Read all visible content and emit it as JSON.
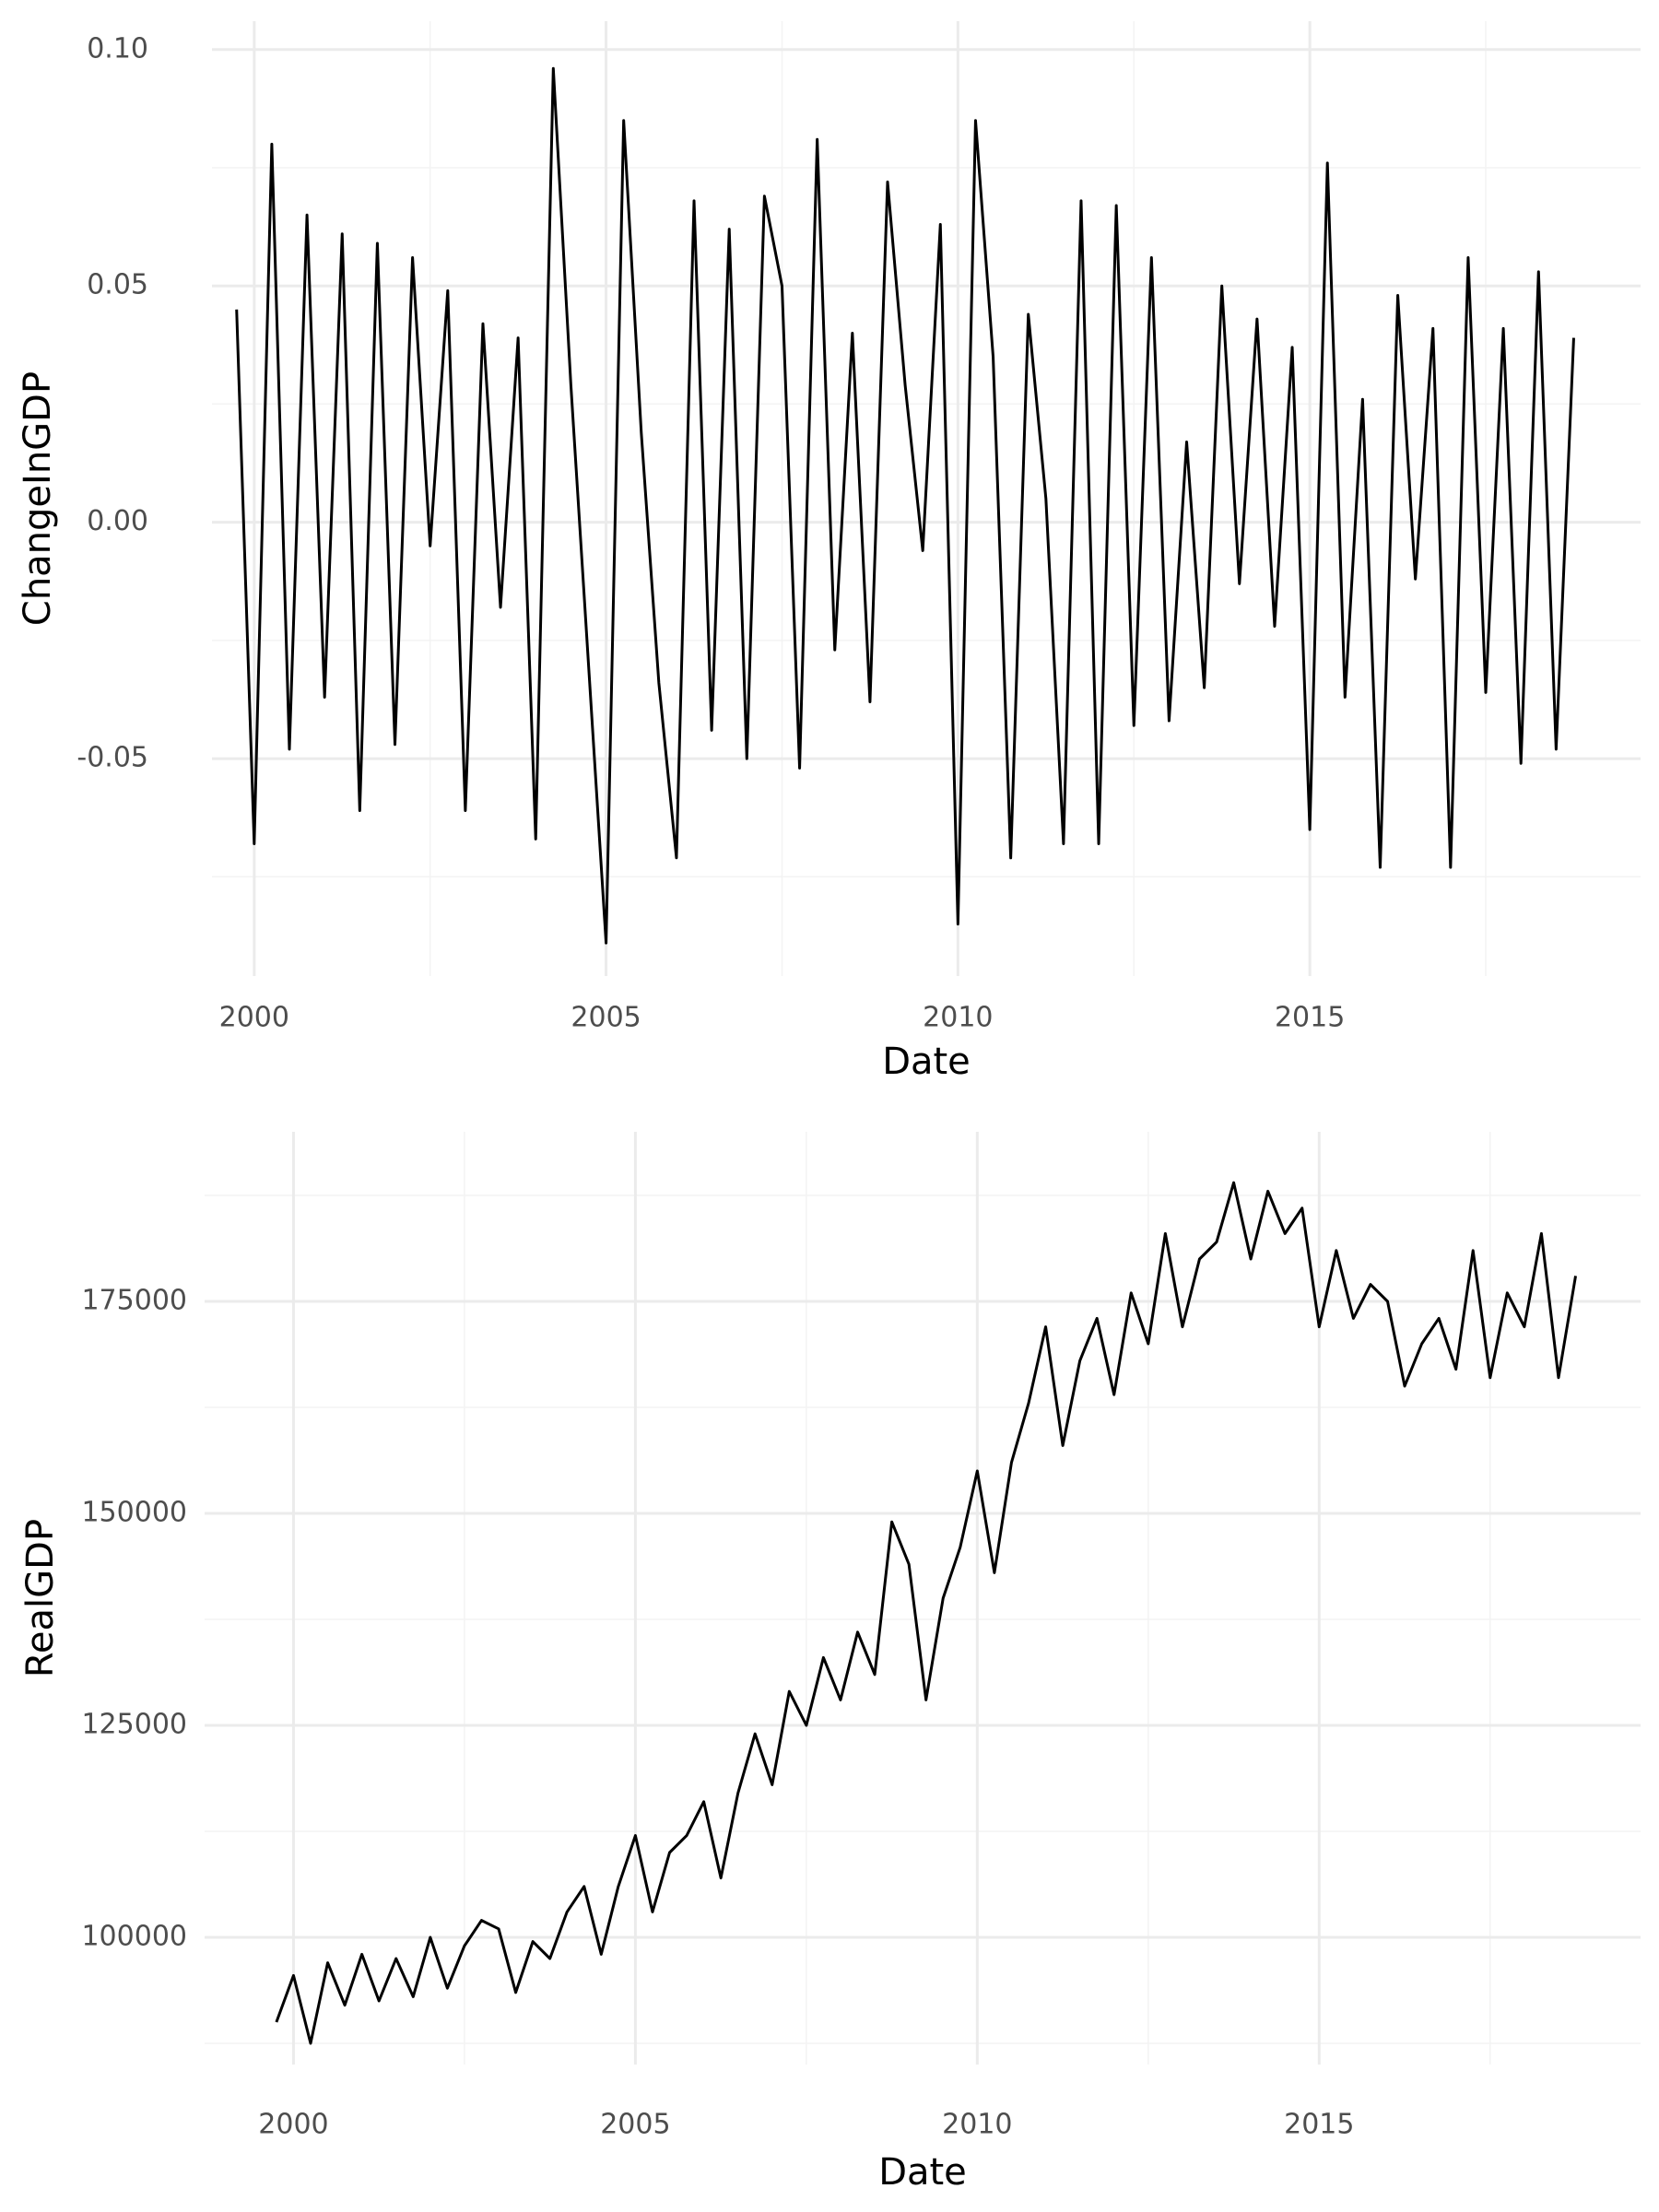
{
  "chart_data": [
    {
      "type": "line",
      "x_label": "Date",
      "y_label": "ChangeInGDP",
      "color": "#000000",
      "grid": true,
      "xlim": [
        1999.4,
        2019.7
      ],
      "ylim": [
        -0.096,
        0.106
      ],
      "xticks": [
        2000,
        2005,
        2010,
        2015
      ],
      "x_minor_ticks": [
        2002.5,
        2007.5,
        2012.5,
        2017.5
      ],
      "yticks": [
        -0.05,
        {
          "value": 0,
          "label": "0.00"
        },
        0.05,
        {
          "value": 0.1,
          "label": "0.10"
        }
      ],
      "y_minor_ticks": [
        -0.075,
        -0.025,
        0.025,
        0.075
      ],
      "x": [
        1999.75,
        2000,
        2000.25,
        2000.5,
        2000.75,
        2001,
        2001.25,
        2001.5,
        2001.75,
        2002,
        2002.25,
        2002.5,
        2002.75,
        2003,
        2003.25,
        2003.5,
        2003.75,
        2004,
        2004.25,
        2004.5,
        2004.75,
        2005,
        2005.25,
        2005.5,
        2005.75,
        2006,
        2006.25,
        2006.5,
        2006.75,
        2007,
        2007.25,
        2007.5,
        2007.75,
        2008,
        2008.25,
        2008.5,
        2008.75,
        2009,
        2009.25,
        2009.5,
        2009.75,
        2010,
        2010.25,
        2010.5,
        2010.75,
        2011,
        2011.25,
        2011.5,
        2011.75,
        2012,
        2012.25,
        2012.5,
        2012.75,
        2013,
        2013.25,
        2013.5,
        2013.75,
        2014,
        2014.25,
        2014.5,
        2014.75,
        2015,
        2015.25,
        2015.5,
        2015.75,
        2016,
        2016.25,
        2016.5,
        2016.75,
        2017,
        2017.25,
        2017.5,
        2017.75,
        2018,
        2018.25,
        2018.5,
        2018.75
      ],
      "values": [
        0.045,
        -0.068,
        0.08,
        -0.048,
        0.065,
        -0.037,
        0.061,
        -0.061,
        0.059,
        -0.047,
        0.056,
        -0.005,
        0.049,
        -0.061,
        0.042,
        -0.018,
        0.039,
        -0.067,
        0.096,
        0.029,
        -0.03,
        -0.089,
        0.085,
        0.019,
        -0.034,
        -0.071,
        0.068,
        -0.044,
        0.062,
        -0.05,
        0.069,
        0.05,
        -0.052,
        0.081,
        -0.027,
        0.04,
        -0.038,
        0.072,
        0.029,
        -0.006,
        0.063,
        -0.085,
        0.085,
        0.035,
        -0.071,
        0.044,
        0.005,
        -0.068,
        0.068,
        -0.068,
        0.067,
        -0.043,
        0.056,
        -0.042,
        0.017,
        -0.035,
        0.05,
        -0.013,
        0.043,
        -0.022,
        0.037,
        -0.065,
        0.076,
        -0.037,
        0.026,
        -0.073,
        0.048,
        -0.012,
        0.041,
        -0.073,
        0.056,
        -0.036,
        0.041,
        -0.051,
        0.053,
        -0.048,
        0.039
      ]
    },
    {
      "type": "line",
      "x_label": "Date",
      "y_label": "RealGDP",
      "color": "#000000",
      "grid": true,
      "xlim": [
        1998.7,
        2019.7
      ],
      "ylim": [
        85000,
        195000
      ],
      "xticks": [
        2000,
        2005,
        2010,
        2015
      ],
      "x_minor_ticks": [
        2002.5,
        2007.5,
        2012.5,
        2017.5
      ],
      "yticks": [
        100000,
        125000,
        150000,
        175000
      ],
      "y_minor_ticks": [
        87500,
        112500,
        137500,
        162500,
        187500
      ],
      "x": [
        1999.75,
        2000,
        2000.25,
        2000.5,
        2000.75,
        2001,
        2001.25,
        2001.5,
        2001.75,
        2002,
        2002.25,
        2002.5,
        2002.75,
        2003,
        2003.25,
        2003.5,
        2003.75,
        2004,
        2004.25,
        2004.5,
        2004.75,
        2005,
        2005.25,
        2005.5,
        2005.75,
        2006,
        2006.25,
        2006.5,
        2006.75,
        2007,
        2007.25,
        2007.5,
        2007.75,
        2008,
        2008.25,
        2008.5,
        2008.75,
        2009,
        2009.25,
        2009.5,
        2009.75,
        2010,
        2010.25,
        2010.5,
        2010.75,
        2011,
        2011.25,
        2011.5,
        2011.75,
        2012,
        2012.25,
        2012.5,
        2012.75,
        2013,
        2013.25,
        2013.5,
        2013.75,
        2014,
        2014.25,
        2014.5,
        2014.75,
        2015,
        2015.25,
        2015.5,
        2015.75,
        2016,
        2016.25,
        2016.5,
        2016.75,
        2017,
        2017.25,
        2017.5,
        2017.75,
        2018,
        2018.25,
        2018.5,
        2018.75
      ],
      "values": [
        90000,
        95500,
        87500,
        97000,
        92000,
        98000,
        92500,
        97500,
        93000,
        100000,
        94000,
        99000,
        102000,
        101000,
        93500,
        99500,
        97500,
        103000,
        106000,
        98000,
        106000,
        112000,
        103000,
        110000,
        112000,
        116000,
        107000,
        117000,
        124000,
        118000,
        129000,
        125000,
        133000,
        128000,
        136000,
        131000,
        149000,
        144000,
        128000,
        140000,
        146000,
        155000,
        143000,
        156000,
        163000,
        172000,
        158000,
        168000,
        173000,
        164000,
        176000,
        170000,
        183000,
        172000,
        180000,
        182000,
        189000,
        180000,
        188000,
        183000,
        186000,
        172000,
        181000,
        173000,
        177000,
        175000,
        165000,
        170000,
        173000,
        167000,
        181000,
        166000,
        176000,
        172000,
        183000,
        166000,
        178000
      ]
    }
  ]
}
